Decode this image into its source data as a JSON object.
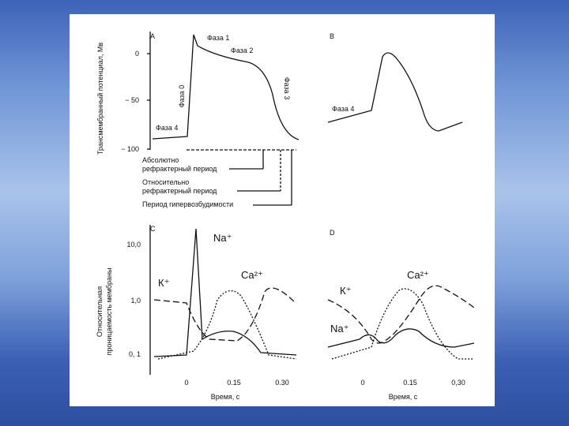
{
  "panel_a": {
    "label": "A",
    "y_axis_title": "Трансмембранный потенциал, Мв",
    "y_ticks": [
      "0",
      "− 50",
      "− 100"
    ],
    "phases": [
      "Фаза 1",
      "Фаза 2",
      "Фаза 0",
      "Фаза 3",
      "Фаза 4"
    ],
    "periods": [
      [
        "Абсолютно",
        "рефрактерный период"
      ],
      [
        "Относительно",
        "рефрактерный период"
      ],
      [
        "Период гипервозбудимости"
      ]
    ]
  },
  "panel_b": {
    "label": "В",
    "phase": "Фаза 4"
  },
  "panel_c": {
    "label": "С",
    "y_axis_title": [
      "Относительная",
      "проницаемость мембраны"
    ],
    "y_ticks": [
      "10,0",
      "1,0",
      "0, 1"
    ],
    "x_ticks": [
      "0",
      "0.15",
      "0.30"
    ],
    "x_axis_title": "Время, с",
    "ions": [
      "Na⁺",
      "К⁺",
      "Ca²⁺"
    ]
  },
  "panel_d": {
    "label": "D",
    "x_ticks": [
      "0",
      "0.15",
      "0,30"
    ],
    "x_axis_title": "Время, с",
    "ions": [
      "Ca²⁺",
      "К⁺",
      "Na⁺"
    ]
  }
}
